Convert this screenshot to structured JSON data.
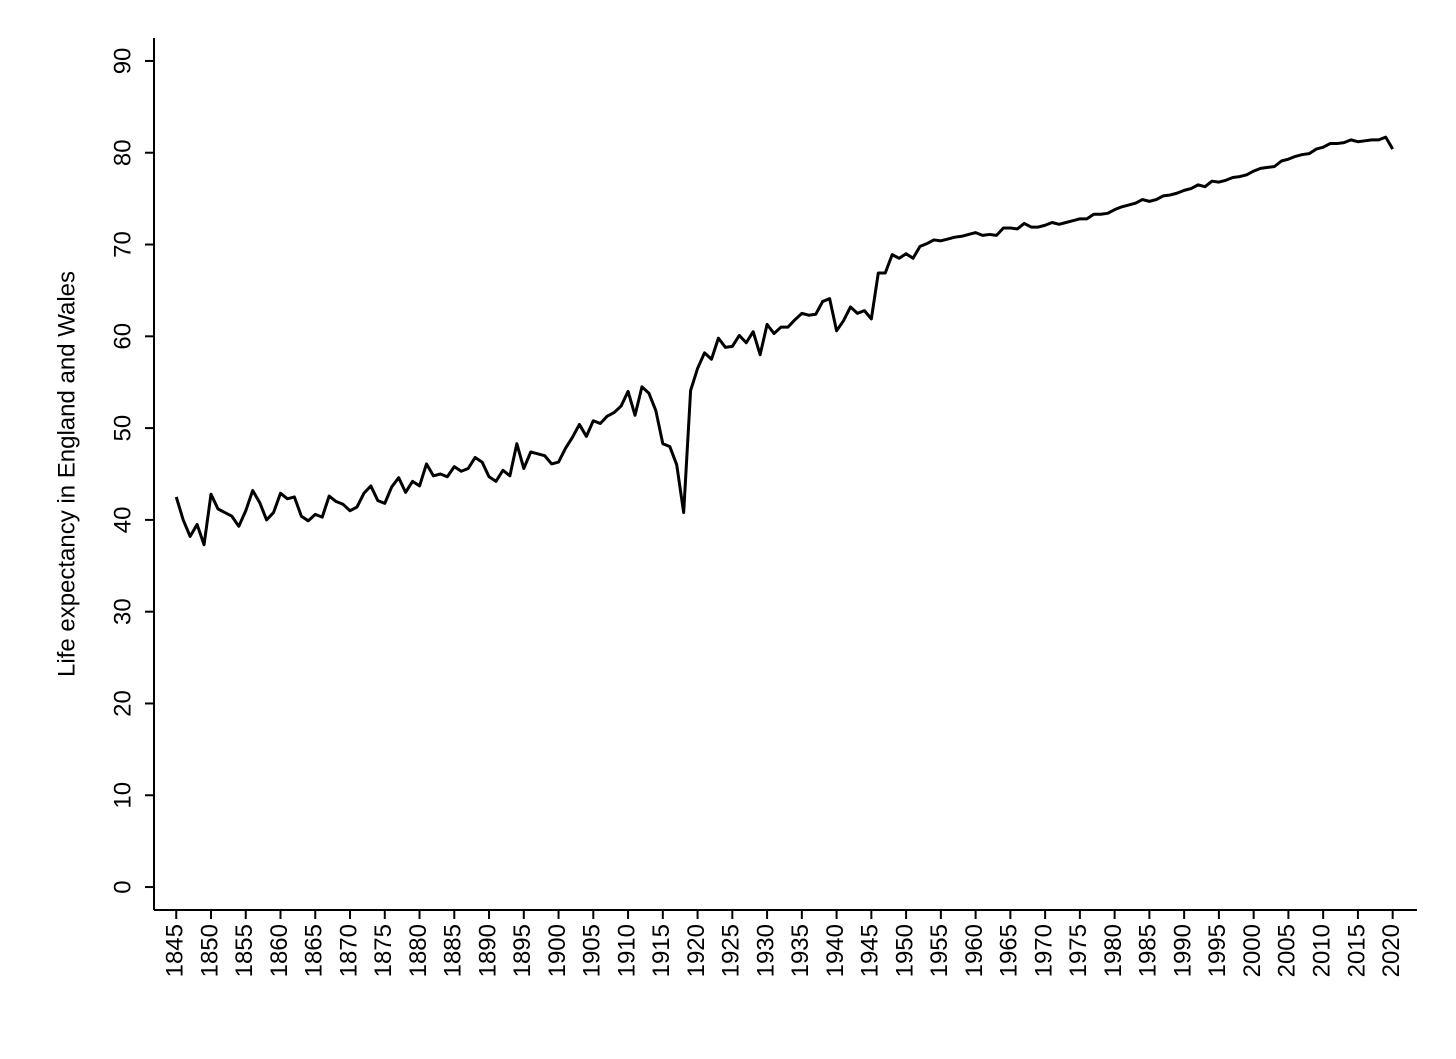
{
  "chart_data": {
    "type": "line",
    "y_label": "Life expectancy in England and Wales",
    "x": [
      1845,
      1846,
      1847,
      1848,
      1849,
      1850,
      1851,
      1852,
      1853,
      1854,
      1855,
      1856,
      1857,
      1858,
      1859,
      1860,
      1861,
      1862,
      1863,
      1864,
      1865,
      1866,
      1867,
      1868,
      1869,
      1870,
      1871,
      1872,
      1873,
      1874,
      1875,
      1876,
      1877,
      1878,
      1879,
      1880,
      1881,
      1882,
      1883,
      1884,
      1885,
      1886,
      1887,
      1888,
      1889,
      1890,
      1891,
      1892,
      1893,
      1894,
      1895,
      1896,
      1897,
      1898,
      1899,
      1900,
      1901,
      1902,
      1903,
      1904,
      1905,
      1906,
      1907,
      1908,
      1909,
      1910,
      1911,
      1912,
      1913,
      1914,
      1915,
      1916,
      1917,
      1918,
      1919,
      1920,
      1921,
      1922,
      1923,
      1924,
      1925,
      1926,
      1927,
      1928,
      1929,
      1930,
      1931,
      1932,
      1933,
      1934,
      1935,
      1936,
      1937,
      1938,
      1939,
      1940,
      1941,
      1942,
      1943,
      1944,
      1945,
      1946,
      1947,
      1948,
      1949,
      1950,
      1951,
      1952,
      1953,
      1954,
      1955,
      1956,
      1957,
      1958,
      1959,
      1960,
      1961,
      1962,
      1963,
      1964,
      1965,
      1966,
      1967,
      1968,
      1969,
      1970,
      1971,
      1972,
      1973,
      1974,
      1975,
      1976,
      1977,
      1978,
      1979,
      1980,
      1981,
      1982,
      1983,
      1984,
      1985,
      1986,
      1987,
      1988,
      1989,
      1990,
      1991,
      1992,
      1993,
      1994,
      1995,
      1996,
      1997,
      1998,
      1999,
      2000,
      2001,
      2002,
      2003,
      2004,
      2005,
      2006,
      2007,
      2008,
      2009,
      2010,
      2011,
      2012,
      2013,
      2014,
      2015,
      2016,
      2017,
      2018,
      2019,
      2020
    ],
    "series": [
      {
        "color": "#000000",
        "values": [
          42.5,
          40,
          38.2,
          39.5,
          37.3,
          42.8,
          41.2,
          40.8,
          40.4,
          39.3,
          41,
          43.2,
          41.9,
          40,
          40.8,
          42.9,
          42.3,
          42.5,
          40.4,
          39.9,
          40.6,
          40.3,
          42.6,
          42,
          41.7,
          41,
          41.4,
          42.9,
          43.7,
          42.1,
          41.8,
          43.6,
          44.6,
          43,
          44.2,
          43.7,
          46.1,
          44.8,
          45,
          44.7,
          45.8,
          45.3,
          45.6,
          46.8,
          46.3,
          44.7,
          44.2,
          45.4,
          44.8,
          48.3,
          45.6,
          47.4,
          47.2,
          47,
          46.1,
          46.3,
          47.8,
          49,
          50.4,
          49.1,
          50.8,
          50.5,
          51.3,
          51.7,
          52.4,
          54,
          51.4,
          54.5,
          53.8,
          51.9,
          48.3,
          48,
          46,
          40.8,
          54.1,
          56.5,
          58.2,
          57.5,
          59.8,
          58.8,
          58.9,
          60.1,
          59.3,
          60.5,
          58,
          61.3,
          60.3,
          61,
          61,
          61.8,
          62.5,
          62.3,
          62.4,
          63.8,
          64.1,
          60.6,
          61.7,
          63.2,
          62.5,
          62.8,
          61.9,
          66.9,
          66.9,
          68.9,
          68.5,
          69,
          68.5,
          69.8,
          70.1,
          70.5,
          70.4,
          70.6,
          70.8,
          70.9,
          71.1,
          71.3,
          71,
          71.1,
          71,
          71.8,
          71.8,
          71.7,
          72.3,
          71.9,
          71.9,
          72.1,
          72.4,
          72.2,
          72.4,
          72.6,
          72.8,
          72.8,
          73.3,
          73.3,
          73.4,
          73.8,
          74.1,
          74.3,
          74.5,
          74.9,
          74.7,
          74.9,
          75.3,
          75.4,
          75.6,
          75.9,
          76.1,
          76.5,
          76.3,
          76.9,
          76.8,
          77,
          77.3,
          77.4,
          77.6,
          78,
          78.3,
          78.4,
          78.5,
          79.1,
          79.3,
          79.6,
          79.8,
          79.9,
          80.4,
          80.6,
          81,
          81,
          81.1,
          81.4,
          81.2,
          81.3,
          81.4,
          81.4,
          81.7,
          80.4
        ]
      }
    ],
    "xlim": [
      1841.8,
      2023.5
    ],
    "xticks": [
      1845,
      1850,
      1855,
      1860,
      1865,
      1870,
      1875,
      1880,
      1885,
      1890,
      1895,
      1900,
      1905,
      1910,
      1915,
      1920,
      1925,
      1930,
      1935,
      1940,
      1945,
      1950,
      1955,
      1960,
      1965,
      1970,
      1975,
      1980,
      1985,
      1990,
      1995,
      2000,
      2005,
      2010,
      2015,
      2020
    ],
    "ylim": [
      -2.5,
      92.5
    ],
    "yticks": [
      0,
      10,
      20,
      30,
      40,
      50,
      60,
      70,
      80,
      90
    ]
  }
}
